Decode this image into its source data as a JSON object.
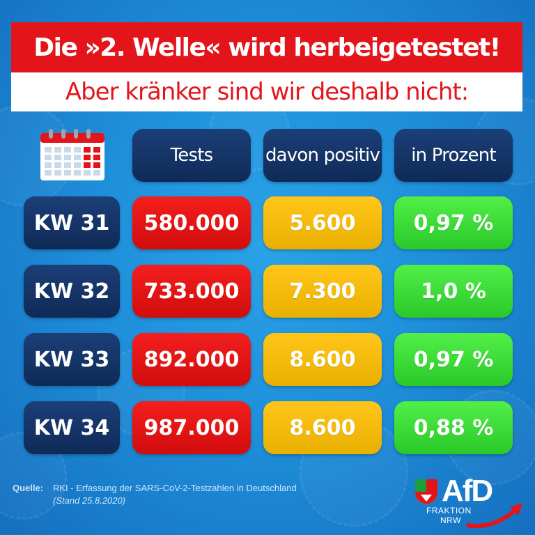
{
  "headline": "Die »2. Welle« wird herbeigetestet!",
  "subheadline": "Aber kränker sind wir deshalb nicht:",
  "table": {
    "header": {
      "calendar_icon": "calendar-icon",
      "col1": "Tests",
      "col2": "davon positiv",
      "col3": "in Prozent"
    },
    "rows": [
      {
        "week": "KW 31",
        "tests": "580.000",
        "positive": "5.600",
        "percent": "0,97 %"
      },
      {
        "week": "KW 32",
        "tests": "733.000",
        "positive": "7.300",
        "percent": "1,0 %"
      },
      {
        "week": "KW 33",
        "tests": "892.000",
        "positive": "8.600",
        "percent": "0,97 %"
      },
      {
        "week": "KW 34",
        "tests": "987.000",
        "positive": "8.600",
        "percent": "0,88 %"
      }
    ]
  },
  "source": {
    "label": "Quelle:",
    "text": "RKI - Erfassung der SARS-CoV-2-Testzahlen in Deutschland",
    "date": "(Stand 25.8.2020)"
  },
  "logo": {
    "name": "AfD",
    "line1": "FRAKTION",
    "line2": "NRW"
  },
  "colors": {
    "background": "#1f8fda",
    "red": "#e3151b",
    "navy": "#0f2a57",
    "yellow": "#f2b800",
    "green": "#3cdc38"
  }
}
